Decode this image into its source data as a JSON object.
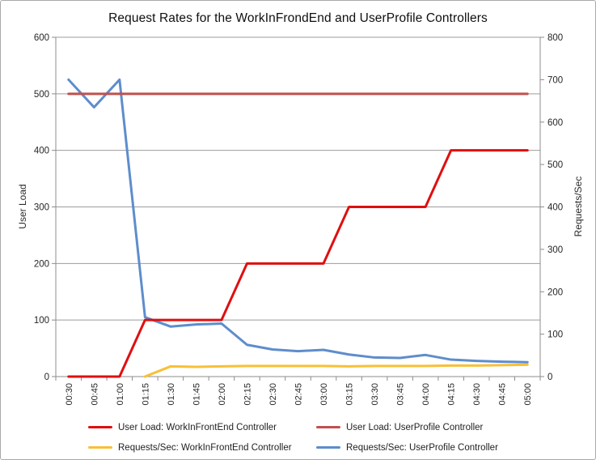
{
  "chart": {
    "title": "Request Rates for the WorkInFrondEnd and UserProfile Controllers"
  },
  "chart_data": {
    "type": "line",
    "title": "Request Rates for the WorkInFrondEnd and UserProfile Controllers",
    "categories": [
      "00:30",
      "00:45",
      "01:00",
      "01:15",
      "01:30",
      "01:45",
      "02:00",
      "02:15",
      "02:30",
      "02:45",
      "03:00",
      "03:15",
      "03:30",
      "03:45",
      "04:00",
      "04:15",
      "04:30",
      "04:45",
      "05:00"
    ],
    "series": [
      {
        "name": "User Load: WorkInFrontEnd Controller",
        "axis": "left",
        "color": "#df0f0f",
        "values": [
          0,
          0,
          0,
          100,
          100,
          100,
          100,
          200,
          200,
          200,
          200,
          300,
          300,
          300,
          300,
          400,
          400,
          400,
          400
        ]
      },
      {
        "name": "User Load: UserProfile Controller",
        "axis": "left",
        "color": "#c0504d",
        "values": [
          500,
          500,
          500,
          500,
          500,
          500,
          500,
          500,
          500,
          500,
          500,
          500,
          500,
          500,
          500,
          500,
          500,
          500,
          500
        ]
      },
      {
        "name": "Requests/Sec: WorkInFrontEnd Controller",
        "axis": "right",
        "color": "#f8c036",
        "values": [
          null,
          null,
          null,
          0,
          24,
          23,
          24,
          25,
          25,
          25,
          25,
          24,
          25,
          25,
          25,
          26,
          26,
          27,
          28
        ]
      },
      {
        "name": "Requests/Sec: UserProfile Controller",
        "axis": "right",
        "color": "#5e8dcc",
        "values": [
          700,
          635,
          700,
          140,
          118,
          123,
          125,
          75,
          64,
          60,
          63,
          52,
          45,
          44,
          51,
          40,
          37,
          35,
          34
        ]
      }
    ],
    "left_axis": {
      "label": "User Load",
      "min": 0,
      "max": 600,
      "step": 100
    },
    "right_axis": {
      "label": "Requests/Sec",
      "min": 0,
      "max": 800,
      "step": 100
    },
    "grid": true,
    "legend_position": "bottom",
    "colors": {
      "gridline": "#9c9c9c",
      "axis_line": "#8c8c8c",
      "tick_text": "#262626",
      "border": "#a9a9a9"
    }
  }
}
